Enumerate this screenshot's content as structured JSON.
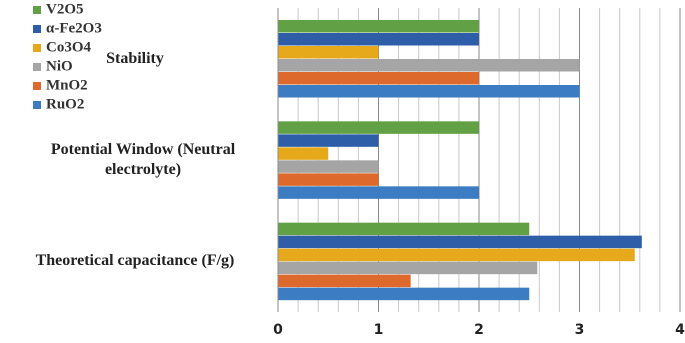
{
  "chart_data": {
    "type": "hbar",
    "categories": [
      "Theoretical capacitance (F/g)",
      "Potential Window (Neutral electrolyte)",
      "Stability"
    ],
    "series": [
      {
        "name": "V2O5",
        "color": "#62a046",
        "values": [
          2.5,
          2,
          2
        ]
      },
      {
        "name": "α-Fe2O3",
        "color": "#2f5ea9",
        "values": [
          3.62,
          1,
          2
        ]
      },
      {
        "name": "Co3O4",
        "color": "#e6a91c",
        "values": [
          3.55,
          0.5,
          1
        ]
      },
      {
        "name": "NiO",
        "color": "#a5a5a5",
        "values": [
          2.58,
          1,
          3
        ]
      },
      {
        "name": "MnO2",
        "color": "#dd6a2c",
        "values": [
          1.32,
          1,
          2
        ]
      },
      {
        "name": "RuO2",
        "color": "#3b7cc2",
        "values": [
          2.5,
          2,
          3
        ]
      }
    ],
    "xlim": [
      0,
      4
    ],
    "xticks": [
      0,
      1,
      2,
      3,
      4
    ],
    "grid": true,
    "legend": "top-left"
  }
}
